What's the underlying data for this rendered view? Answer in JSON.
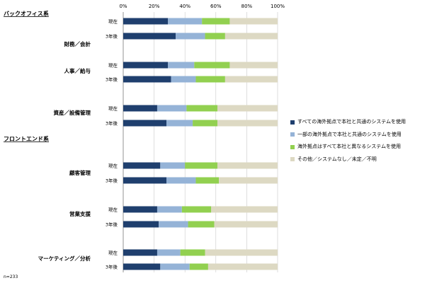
{
  "chart_data": {
    "type": "bar",
    "orientation": "horizontal",
    "stacked": true,
    "xlim": [
      0,
      100
    ],
    "x_ticks": [
      "0%",
      "20%",
      "40%",
      "60%",
      "80%",
      "100%"
    ],
    "grid": true,
    "legend_position": "right",
    "series": [
      {
        "name": "すべての海外拠点で本社と共通のシステムを使用",
        "color": "#1f3f6e"
      },
      {
        "name": "一部の海外拠点で本社と共通のシステムを使用",
        "color": "#95b3d7"
      },
      {
        "name": "海外拠点はすべて本社と異なるシステムを使用",
        "color": "#92d050"
      },
      {
        "name": "その他／システムなし／未定／不明",
        "color": "#ddd9c3"
      }
    ],
    "sections": [
      {
        "title": "バックオフィス系",
        "start_group": 0
      },
      {
        "title": "フロントエンド系",
        "start_group": 3
      }
    ],
    "groups": [
      {
        "label": "財務／会計",
        "bars": [
          {
            "label": "現在",
            "values": [
              29,
              22,
              18,
              31
            ]
          },
          {
            "label": "3年後",
            "values": [
              34,
              19,
              13,
              34
            ]
          }
        ]
      },
      {
        "label": "人事／給与",
        "bars": [
          {
            "label": "現在",
            "values": [
              29,
              17,
              23,
              31
            ]
          },
          {
            "label": "3年後",
            "values": [
              31,
              16,
              19,
              34
            ]
          }
        ]
      },
      {
        "label": "資産／設備管理",
        "bars": [
          {
            "label": "現在",
            "values": [
              22,
              19,
              20,
              39
            ]
          },
          {
            "label": "3年後",
            "values": [
              28,
              17,
              16,
              39
            ]
          }
        ]
      },
      {
        "label": "顧客管理",
        "bars": [
          {
            "label": "現在",
            "values": [
              24,
              16,
              21,
              39
            ]
          },
          {
            "label": "3年後",
            "values": [
              28,
              19,
              15,
              38
            ]
          }
        ]
      },
      {
        "label": "営業支援",
        "bars": [
          {
            "label": "現在",
            "values": [
              22,
              16,
              19,
              43
            ]
          },
          {
            "label": "3年後",
            "values": [
              23,
              19,
              17,
              41
            ]
          }
        ]
      },
      {
        "label": "マーケティング／分析",
        "bars": [
          {
            "label": "現在",
            "values": [
              22,
              15,
              16,
              47
            ]
          },
          {
            "label": "3年後",
            "values": [
              24,
              19,
              12,
              45
            ]
          }
        ]
      }
    ]
  },
  "footnote": "n=233"
}
